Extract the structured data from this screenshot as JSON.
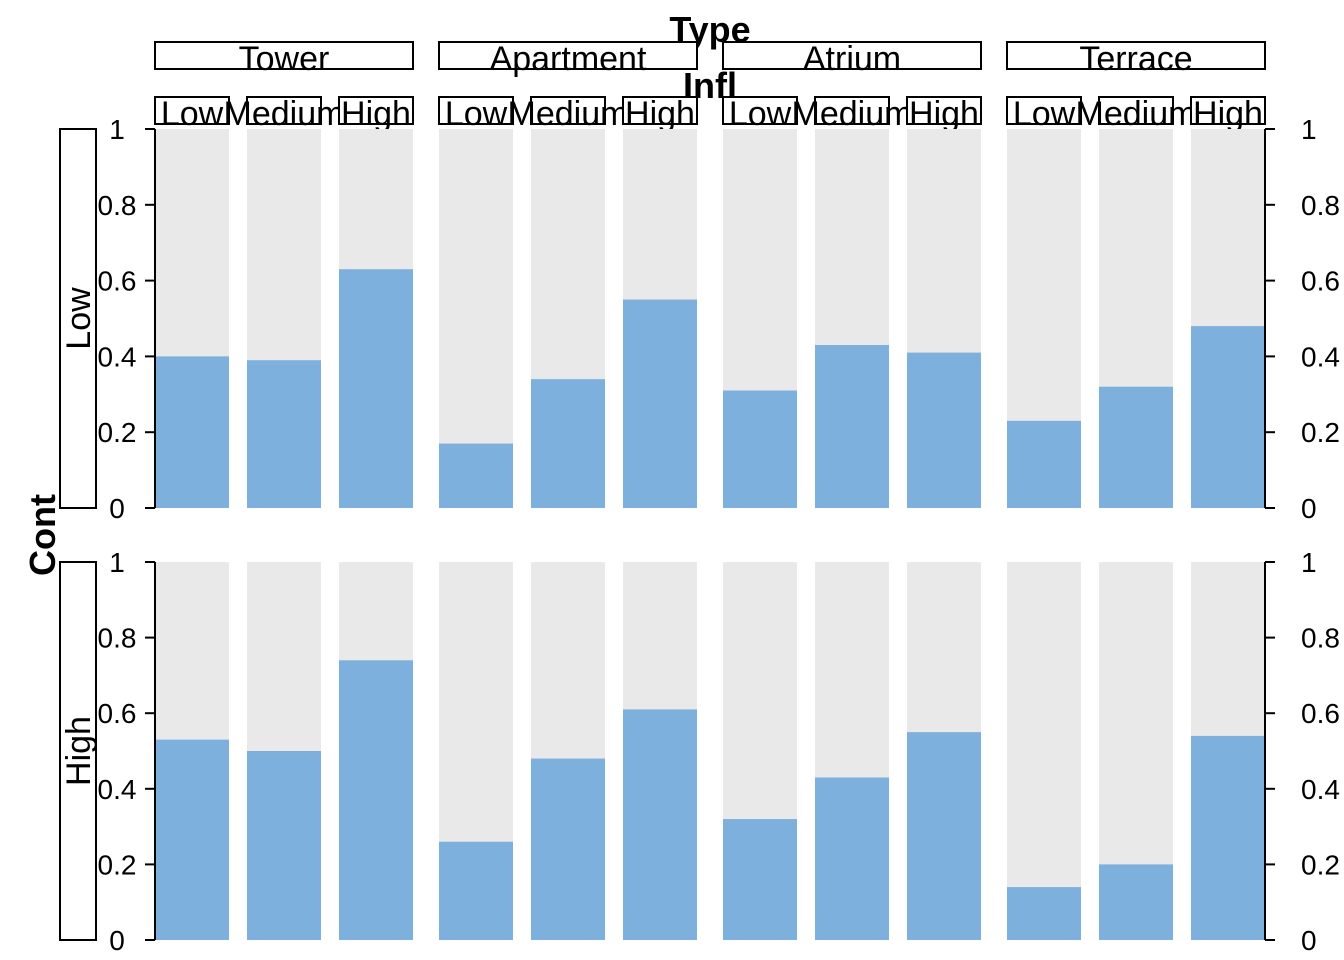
{
  "chart_data": {
    "type": "bar",
    "layout": "faceted spine plot",
    "x_facet_title": "Type",
    "x_sub_title": "Infl",
    "y_facet_title": "Cont",
    "types": [
      "Tower",
      "Apartment",
      "Atrium",
      "Terrace"
    ],
    "infl_levels": [
      "Low",
      "Medium",
      "High"
    ],
    "cont_levels": [
      "Low",
      "High"
    ],
    "ylim": [
      0,
      1
    ],
    "y_ticks": [
      "0",
      "0.2",
      "0.4",
      "0.6",
      "0.8",
      "1"
    ],
    "series": [
      {
        "cont": "Low",
        "values": {
          "Tower": [
            0.4,
            0.39,
            0.63
          ],
          "Apartment": [
            0.17,
            0.34,
            0.55
          ],
          "Atrium": [
            0.31,
            0.43,
            0.41
          ],
          "Terrace": [
            0.23,
            0.32,
            0.48
          ]
        }
      },
      {
        "cont": "High",
        "values": {
          "Tower": [
            0.53,
            0.5,
            0.74
          ],
          "Apartment": [
            0.26,
            0.48,
            0.61
          ],
          "Atrium": [
            0.32,
            0.43,
            0.55
          ],
          "Terrace": [
            0.14,
            0.2,
            0.54
          ]
        }
      }
    ],
    "colors": {
      "fill": "#7eb0dd",
      "background": "#e9e9e9"
    }
  }
}
